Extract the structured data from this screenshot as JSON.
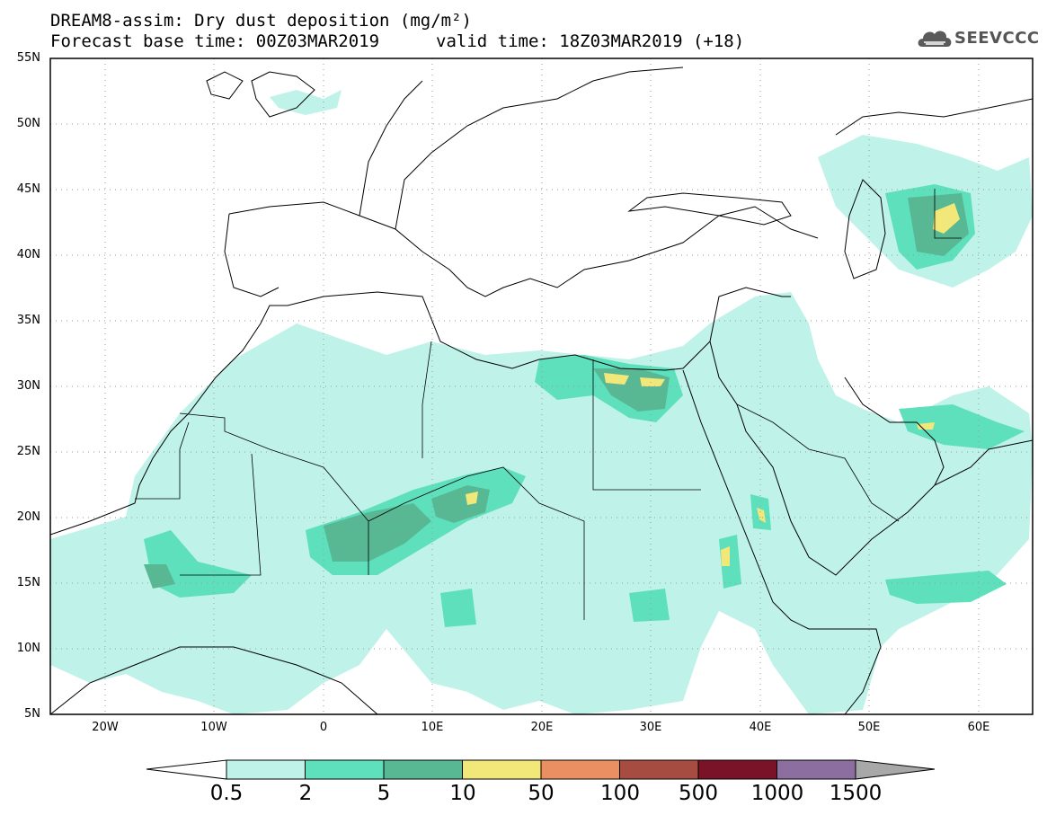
{
  "header": {
    "title": "DREAM8-assim: Dry dust deposition (mg/m²)",
    "base_time": "Forecast base time: 00Z03MAR2019",
    "valid_time": "valid time: 18Z03MAR2019 (+18)",
    "logo": "SEEVCCC"
  },
  "map": {
    "lat_labels": [
      "55N",
      "50N",
      "45N",
      "40N",
      "35N",
      "30N",
      "25N",
      "20N",
      "15N",
      "10N",
      "5N"
    ],
    "lon_labels": [
      "20W",
      "10W",
      "0",
      "10E",
      "20E",
      "30E",
      "40E",
      "50E",
      "60E"
    ]
  },
  "colorbar": {
    "labels": [
      "0.5",
      "2",
      "5",
      "10",
      "50",
      "100",
      "500",
      "1000",
      "1500"
    ],
    "colors": [
      "#bff2e8",
      "#5ee0bd",
      "#58b894",
      "#f2e87a",
      "#ea8f62",
      "#a64c40",
      "#7a1228",
      "#8c6ea0",
      "#a8a8a8"
    ]
  }
}
